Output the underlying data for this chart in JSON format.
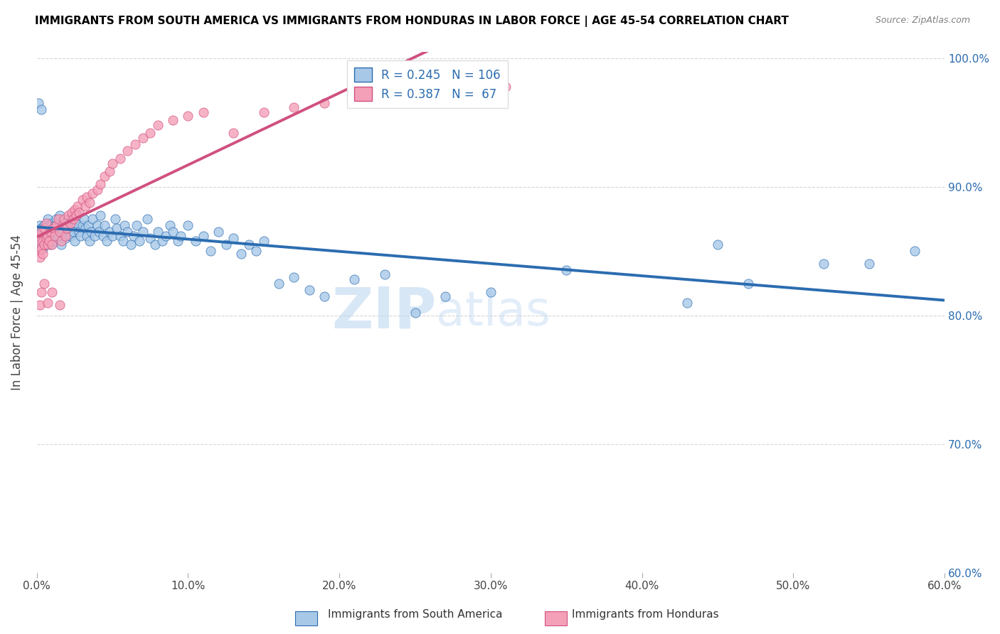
{
  "title": "IMMIGRANTS FROM SOUTH AMERICA VS IMMIGRANTS FROM HONDURAS IN LABOR FORCE | AGE 45-54 CORRELATION CHART",
  "source": "Source: ZipAtlas.com",
  "ylabel": "In Labor Force | Age 45-54",
  "xmin": 0.0,
  "xmax": 0.6,
  "ymin": 0.6,
  "ymax": 1.005,
  "blue_R": 0.245,
  "blue_N": 106,
  "pink_R": 0.387,
  "pink_N": 67,
  "blue_color": "#a8c8e8",
  "pink_color": "#f4a0b8",
  "blue_line_color": "#2b6cb0",
  "pink_line_color": "#d05080",
  "watermark_zip": "ZIP",
  "watermark_atlas": "atlas",
  "xtick_labels": [
    "0.0%",
    "10.0%",
    "20.0%",
    "30.0%",
    "40.0%",
    "50.0%",
    "60.0%"
  ],
  "ytick_right_labels": [
    "60.0%",
    "70.0%",
    "80.0%",
    "90.0%",
    "100.0%"
  ],
  "legend_label_blue": "Immigrants from South America",
  "legend_label_pink": "Immigrants from Honduras",
  "blue_scatter_x": [
    0.001,
    0.002,
    0.002,
    0.003,
    0.003,
    0.004,
    0.004,
    0.005,
    0.005,
    0.006,
    0.006,
    0.007,
    0.007,
    0.008,
    0.008,
    0.009,
    0.01,
    0.01,
    0.011,
    0.012,
    0.012,
    0.013,
    0.014,
    0.015,
    0.015,
    0.016,
    0.017,
    0.018,
    0.019,
    0.02,
    0.021,
    0.022,
    0.023,
    0.024,
    0.025,
    0.026,
    0.027,
    0.028,
    0.029,
    0.03,
    0.031,
    0.032,
    0.033,
    0.034,
    0.035,
    0.036,
    0.037,
    0.038,
    0.04,
    0.041,
    0.042,
    0.044,
    0.045,
    0.046,
    0.048,
    0.05,
    0.052,
    0.053,
    0.055,
    0.057,
    0.058,
    0.06,
    0.062,
    0.064,
    0.066,
    0.068,
    0.07,
    0.073,
    0.075,
    0.078,
    0.08,
    0.083,
    0.085,
    0.088,
    0.09,
    0.093,
    0.095,
    0.1,
    0.105,
    0.11,
    0.115,
    0.12,
    0.125,
    0.13,
    0.135,
    0.14,
    0.145,
    0.15,
    0.16,
    0.17,
    0.18,
    0.19,
    0.21,
    0.23,
    0.25,
    0.27,
    0.3,
    0.35,
    0.45,
    0.52,
    0.43,
    0.47,
    0.55,
    0.58,
    0.001,
    0.003
  ],
  "blue_scatter_y": [
    0.855,
    0.862,
    0.87,
    0.858,
    0.868,
    0.852,
    0.865,
    0.86,
    0.87,
    0.855,
    0.862,
    0.858,
    0.875,
    0.865,
    0.87,
    0.855,
    0.86,
    0.872,
    0.865,
    0.87,
    0.858,
    0.875,
    0.862,
    0.87,
    0.878,
    0.855,
    0.865,
    0.872,
    0.86,
    0.868,
    0.875,
    0.862,
    0.87,
    0.865,
    0.858,
    0.872,
    0.878,
    0.865,
    0.862,
    0.87,
    0.875,
    0.868,
    0.862,
    0.87,
    0.858,
    0.865,
    0.875,
    0.862,
    0.87,
    0.865,
    0.878,
    0.862,
    0.87,
    0.858,
    0.865,
    0.862,
    0.875,
    0.868,
    0.862,
    0.858,
    0.87,
    0.865,
    0.855,
    0.862,
    0.87,
    0.858,
    0.865,
    0.875,
    0.86,
    0.855,
    0.865,
    0.858,
    0.862,
    0.87,
    0.865,
    0.858,
    0.862,
    0.87,
    0.858,
    0.862,
    0.85,
    0.865,
    0.855,
    0.86,
    0.848,
    0.855,
    0.85,
    0.858,
    0.825,
    0.83,
    0.82,
    0.815,
    0.828,
    0.832,
    0.802,
    0.815,
    0.818,
    0.835,
    0.855,
    0.84,
    0.81,
    0.825,
    0.84,
    0.85,
    0.965,
    0.96
  ],
  "pink_scatter_x": [
    0.001,
    0.001,
    0.002,
    0.002,
    0.003,
    0.003,
    0.004,
    0.004,
    0.005,
    0.005,
    0.006,
    0.006,
    0.007,
    0.007,
    0.008,
    0.009,
    0.01,
    0.011,
    0.012,
    0.013,
    0.014,
    0.015,
    0.016,
    0.017,
    0.018,
    0.019,
    0.02,
    0.021,
    0.022,
    0.023,
    0.024,
    0.025,
    0.026,
    0.027,
    0.028,
    0.03,
    0.032,
    0.033,
    0.035,
    0.037,
    0.04,
    0.042,
    0.045,
    0.048,
    0.05,
    0.055,
    0.06,
    0.065,
    0.07,
    0.075,
    0.08,
    0.09,
    0.1,
    0.11,
    0.13,
    0.15,
    0.17,
    0.19,
    0.23,
    0.27,
    0.31,
    0.002,
    0.003,
    0.005,
    0.007,
    0.01,
    0.015
  ],
  "pink_scatter_y": [
    0.85,
    0.862,
    0.845,
    0.858,
    0.852,
    0.865,
    0.848,
    0.858,
    0.855,
    0.868,
    0.86,
    0.872,
    0.855,
    0.862,
    0.858,
    0.865,
    0.855,
    0.868,
    0.862,
    0.87,
    0.875,
    0.865,
    0.858,
    0.87,
    0.875,
    0.862,
    0.868,
    0.878,
    0.872,
    0.88,
    0.875,
    0.882,
    0.878,
    0.885,
    0.88,
    0.89,
    0.885,
    0.892,
    0.888,
    0.895,
    0.898,
    0.902,
    0.908,
    0.912,
    0.918,
    0.922,
    0.928,
    0.933,
    0.938,
    0.942,
    0.948,
    0.952,
    0.955,
    0.958,
    0.942,
    0.958,
    0.962,
    0.965,
    0.968,
    0.97,
    0.978,
    0.808,
    0.818,
    0.825,
    0.81,
    0.818,
    0.808
  ]
}
